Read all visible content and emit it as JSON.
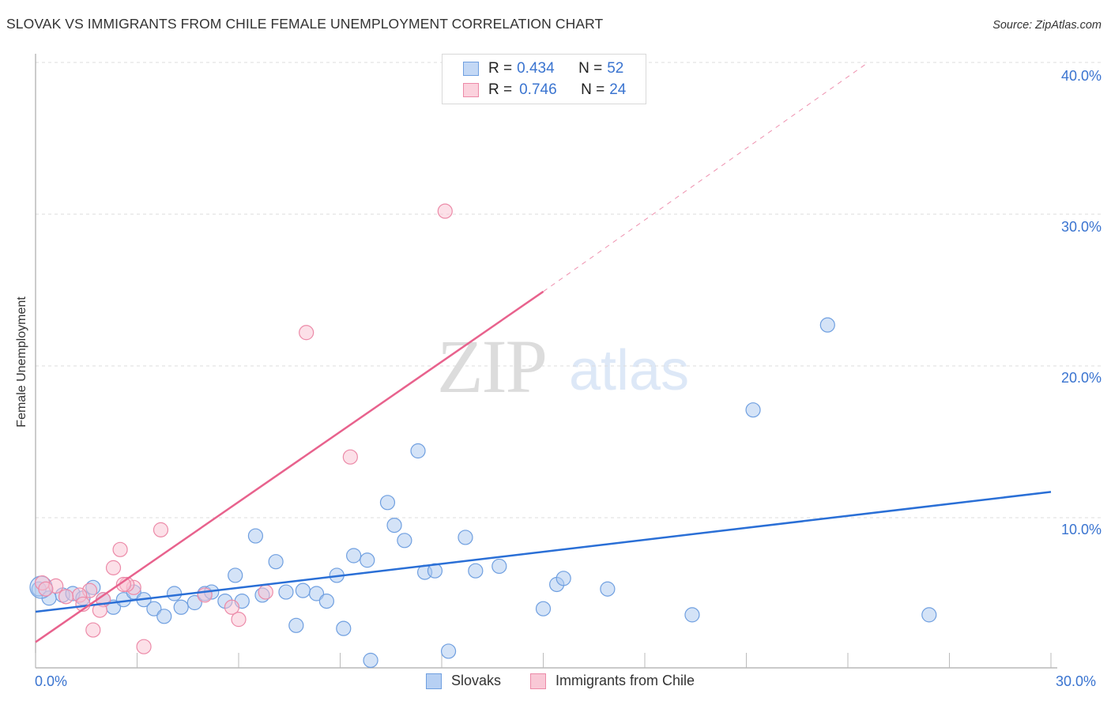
{
  "header": {
    "title": "SLOVAK VS IMMIGRANTS FROM CHILE FEMALE UNEMPLOYMENT CORRELATION CHART",
    "source": "Source: ZipAtlas.com"
  },
  "watermark": {
    "zip": "ZIP",
    "atlas": "atlas"
  },
  "legend_stats": [
    {
      "r_label": "R =",
      "r_value": "0.434",
      "n_label": "N =",
      "n_value": "52",
      "color": "#a9c8f0",
      "border": "#6f9fe0"
    },
    {
      "r_label": "R =",
      "r_value": "0.746",
      "n_label": "N =",
      "n_value": "24",
      "color": "#f9c2d1",
      "border": "#ec8aa8"
    }
  ],
  "bottom_legend": [
    {
      "label": "Slovaks",
      "color": "#a9c8f0",
      "border": "#6f9fe0"
    },
    {
      "label": "Immigrants from Chile",
      "color": "#f9c2d1",
      "border": "#ec8aa8"
    }
  ],
  "axes": {
    "ylabel": "Female Unemployment",
    "y_ticks": [
      "40.0%",
      "30.0%",
      "20.0%",
      "10.0%"
    ],
    "x_ticks": [
      "0.0%",
      "30.0%"
    ]
  },
  "colors": {
    "blue_line": "#2a6fd6",
    "pink_line": "#e8628d",
    "tick_text": "#3a74d0",
    "grid": "#dddddd"
  },
  "chart_data": {
    "type": "scatter",
    "title": "SLOVAK VS IMMIGRANTS FROM CHILE FEMALE UNEMPLOYMENT CORRELATION CHART",
    "xlabel": "",
    "ylabel": "Female Unemployment",
    "xlim": [
      0,
      30
    ],
    "ylim": [
      0,
      42
    ],
    "x_ticks": [
      "0.0%",
      "30.0%"
    ],
    "y_ticks": [
      "10.0%",
      "20.0%",
      "30.0%",
      "40.0%"
    ],
    "grid": true,
    "legend_position": "top-center",
    "series": [
      {
        "name": "Slovaks",
        "R": 0.434,
        "N": 52,
        "color": "#6f9fe0",
        "trendline": {
          "x": [
            0,
            30
          ],
          "y": [
            3.8,
            11.7
          ]
        },
        "points": [
          [
            0.1,
            5.3
          ],
          [
            0.4,
            4.7
          ],
          [
            0.8,
            4.9
          ],
          [
            1.1,
            5.0
          ],
          [
            1.4,
            4.7
          ],
          [
            1.7,
            5.4
          ],
          [
            2.0,
            4.6
          ],
          [
            2.3,
            4.1
          ],
          [
            2.6,
            4.6
          ],
          [
            2.9,
            5.1
          ],
          [
            3.2,
            4.6
          ],
          [
            3.5,
            4.0
          ],
          [
            3.8,
            3.5
          ],
          [
            4.1,
            5.0
          ],
          [
            4.3,
            4.1
          ],
          [
            4.7,
            4.4
          ],
          [
            5.0,
            5.0
          ],
          [
            5.2,
            5.1
          ],
          [
            5.6,
            4.5
          ],
          [
            5.9,
            6.2
          ],
          [
            6.1,
            4.5
          ],
          [
            6.5,
            8.8
          ],
          [
            6.7,
            4.9
          ],
          [
            7.1,
            7.1
          ],
          [
            7.4,
            5.1
          ],
          [
            7.7,
            2.9
          ],
          [
            7.9,
            5.2
          ],
          [
            8.3,
            5.0
          ],
          [
            8.6,
            4.5
          ],
          [
            8.9,
            6.2
          ],
          [
            9.1,
            2.7
          ],
          [
            9.4,
            7.5
          ],
          [
            9.8,
            7.2
          ],
          [
            9.9,
            0.6
          ],
          [
            10.4,
            11.0
          ],
          [
            10.6,
            9.5
          ],
          [
            10.9,
            8.5
          ],
          [
            11.3,
            14.4
          ],
          [
            11.5,
            6.4
          ],
          [
            11.8,
            6.5
          ],
          [
            12.2,
            1.2
          ],
          [
            12.7,
            8.7
          ],
          [
            13.0,
            6.5
          ],
          [
            13.7,
            6.8
          ],
          [
            15.0,
            4.0
          ],
          [
            15.4,
            5.6
          ],
          [
            15.6,
            6.0
          ],
          [
            16.9,
            5.3
          ],
          [
            19.4,
            3.6
          ],
          [
            21.2,
            17.1
          ],
          [
            23.4,
            22.7
          ],
          [
            26.4,
            3.6
          ]
        ]
      },
      {
        "name": "Immigrants from Chile",
        "R": 0.746,
        "N": 24,
        "color": "#ec8aa8",
        "trendline": {
          "x": [
            0,
            15
          ],
          "y": [
            1.8,
            24.9
          ],
          "extended_dashed_to": {
            "x": 24.6,
            "y": 40.0
          }
        },
        "points": [
          [
            12.1,
            30.2
          ],
          [
            8.0,
            22.2
          ],
          [
            9.3,
            14.0
          ],
          [
            3.7,
            9.2
          ],
          [
            2.5,
            7.9
          ],
          [
            2.3,
            6.7
          ],
          [
            0.2,
            5.7
          ],
          [
            0.6,
            5.5
          ],
          [
            0.3,
            5.3
          ],
          [
            1.6,
            5.2
          ],
          [
            2.9,
            5.4
          ],
          [
            2.7,
            5.6
          ],
          [
            1.3,
            4.9
          ],
          [
            2.0,
            4.6
          ],
          [
            1.9,
            3.9
          ],
          [
            5.0,
            4.9
          ],
          [
            6.8,
            5.1
          ],
          [
            5.8,
            4.1
          ],
          [
            6.0,
            3.3
          ],
          [
            1.7,
            2.6
          ],
          [
            3.2,
            1.5
          ],
          [
            0.9,
            4.8
          ],
          [
            1.4,
            4.3
          ],
          [
            2.6,
            5.6
          ]
        ]
      }
    ]
  }
}
